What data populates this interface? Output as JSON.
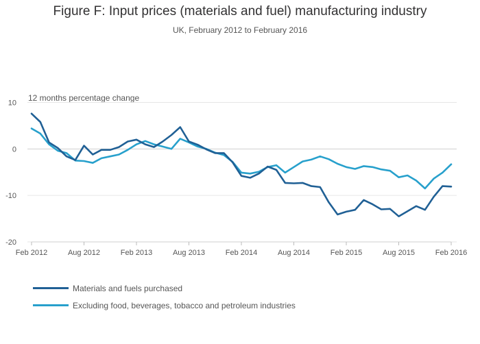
{
  "chart_data": {
    "type": "line",
    "title": "Figure F: Input prices (materials and fuel) manufacturing industry",
    "subtitle": "UK, February 2012 to February 2016",
    "ylabel": "12 months percentage change",
    "xlabel": "",
    "ylim": [
      -20,
      10
    ],
    "yticks": [
      10,
      0,
      -10,
      -20
    ],
    "grid": true,
    "legend_position": "bottom-left",
    "x": [
      "Feb 2012",
      "Mar 2012",
      "Apr 2012",
      "May 2012",
      "Jun 2012",
      "Jul 2012",
      "Aug 2012",
      "Sep 2012",
      "Oct 2012",
      "Nov 2012",
      "Dec 2012",
      "Jan 2013",
      "Feb 2013",
      "Mar 2013",
      "Apr 2013",
      "May 2013",
      "Jun 2013",
      "Jul 2013",
      "Aug 2013",
      "Sep 2013",
      "Oct 2013",
      "Nov 2013",
      "Dec 2013",
      "Jan 2014",
      "Feb 2014",
      "Mar 2014",
      "Apr 2014",
      "May 2014",
      "Jun 2014",
      "Jul 2014",
      "Aug 2014",
      "Sep 2014",
      "Oct 2014",
      "Nov 2014",
      "Dec 2014",
      "Jan 2015",
      "Feb 2015",
      "Mar 2015",
      "Apr 2015",
      "May 2015",
      "Jun 2015",
      "Jul 2015",
      "Aug 2015",
      "Sep 2015",
      "Oct 2015",
      "Nov 2015",
      "Dec 2015",
      "Jan 2016",
      "Feb 2016"
    ],
    "xticks": [
      "Feb 2012",
      "Aug 2012",
      "Feb 2013",
      "Aug 2013",
      "Feb 2014",
      "Aug 2014",
      "Feb 2015",
      "Aug 2015",
      "Feb 2016"
    ],
    "series": [
      {
        "name": "Materials and fuels purchased",
        "color": "#206095",
        "values": [
          7.6,
          5.8,
          1.4,
          0.2,
          -1.6,
          -2.4,
          0.7,
          -1.2,
          -0.2,
          -0.2,
          0.4,
          1.6,
          2.0,
          1.0,
          0.4,
          1.6,
          3.0,
          4.7,
          1.6,
          0.9,
          -0.1,
          -0.9,
          -0.9,
          -2.9,
          -5.8,
          -6.2,
          -5.3,
          -3.8,
          -4.5,
          -7.3,
          -7.4,
          -7.3,
          -8.0,
          -8.2,
          -11.5,
          -14.1,
          -13.5,
          -13.1,
          -11.0,
          -11.9,
          -13.0,
          -12.9,
          -14.5,
          -13.4,
          -12.3,
          -13.1,
          -10.3,
          -8.0,
          -8.1
        ]
      },
      {
        "name": "Excluding food, beverages, tobacco and petroleum industries",
        "color": "#27a0cc",
        "values": [
          4.4,
          3.3,
          1.0,
          -0.4,
          -0.9,
          -2.5,
          -2.6,
          -3.0,
          -2.0,
          -1.6,
          -1.2,
          -0.2,
          1.0,
          1.7,
          1.0,
          0.5,
          0.0,
          2.2,
          1.4,
          0.5,
          0.0,
          -0.8,
          -1.3,
          -2.8,
          -5.1,
          -5.3,
          -4.9,
          -3.9,
          -3.5,
          -5.1,
          -3.9,
          -2.7,
          -2.3,
          -1.6,
          -2.2,
          -3.2,
          -3.9,
          -4.3,
          -3.7,
          -3.9,
          -4.4,
          -4.7,
          -6.1,
          -5.7,
          -6.8,
          -8.5,
          -6.4,
          -5.1,
          -3.3
        ]
      }
    ]
  }
}
